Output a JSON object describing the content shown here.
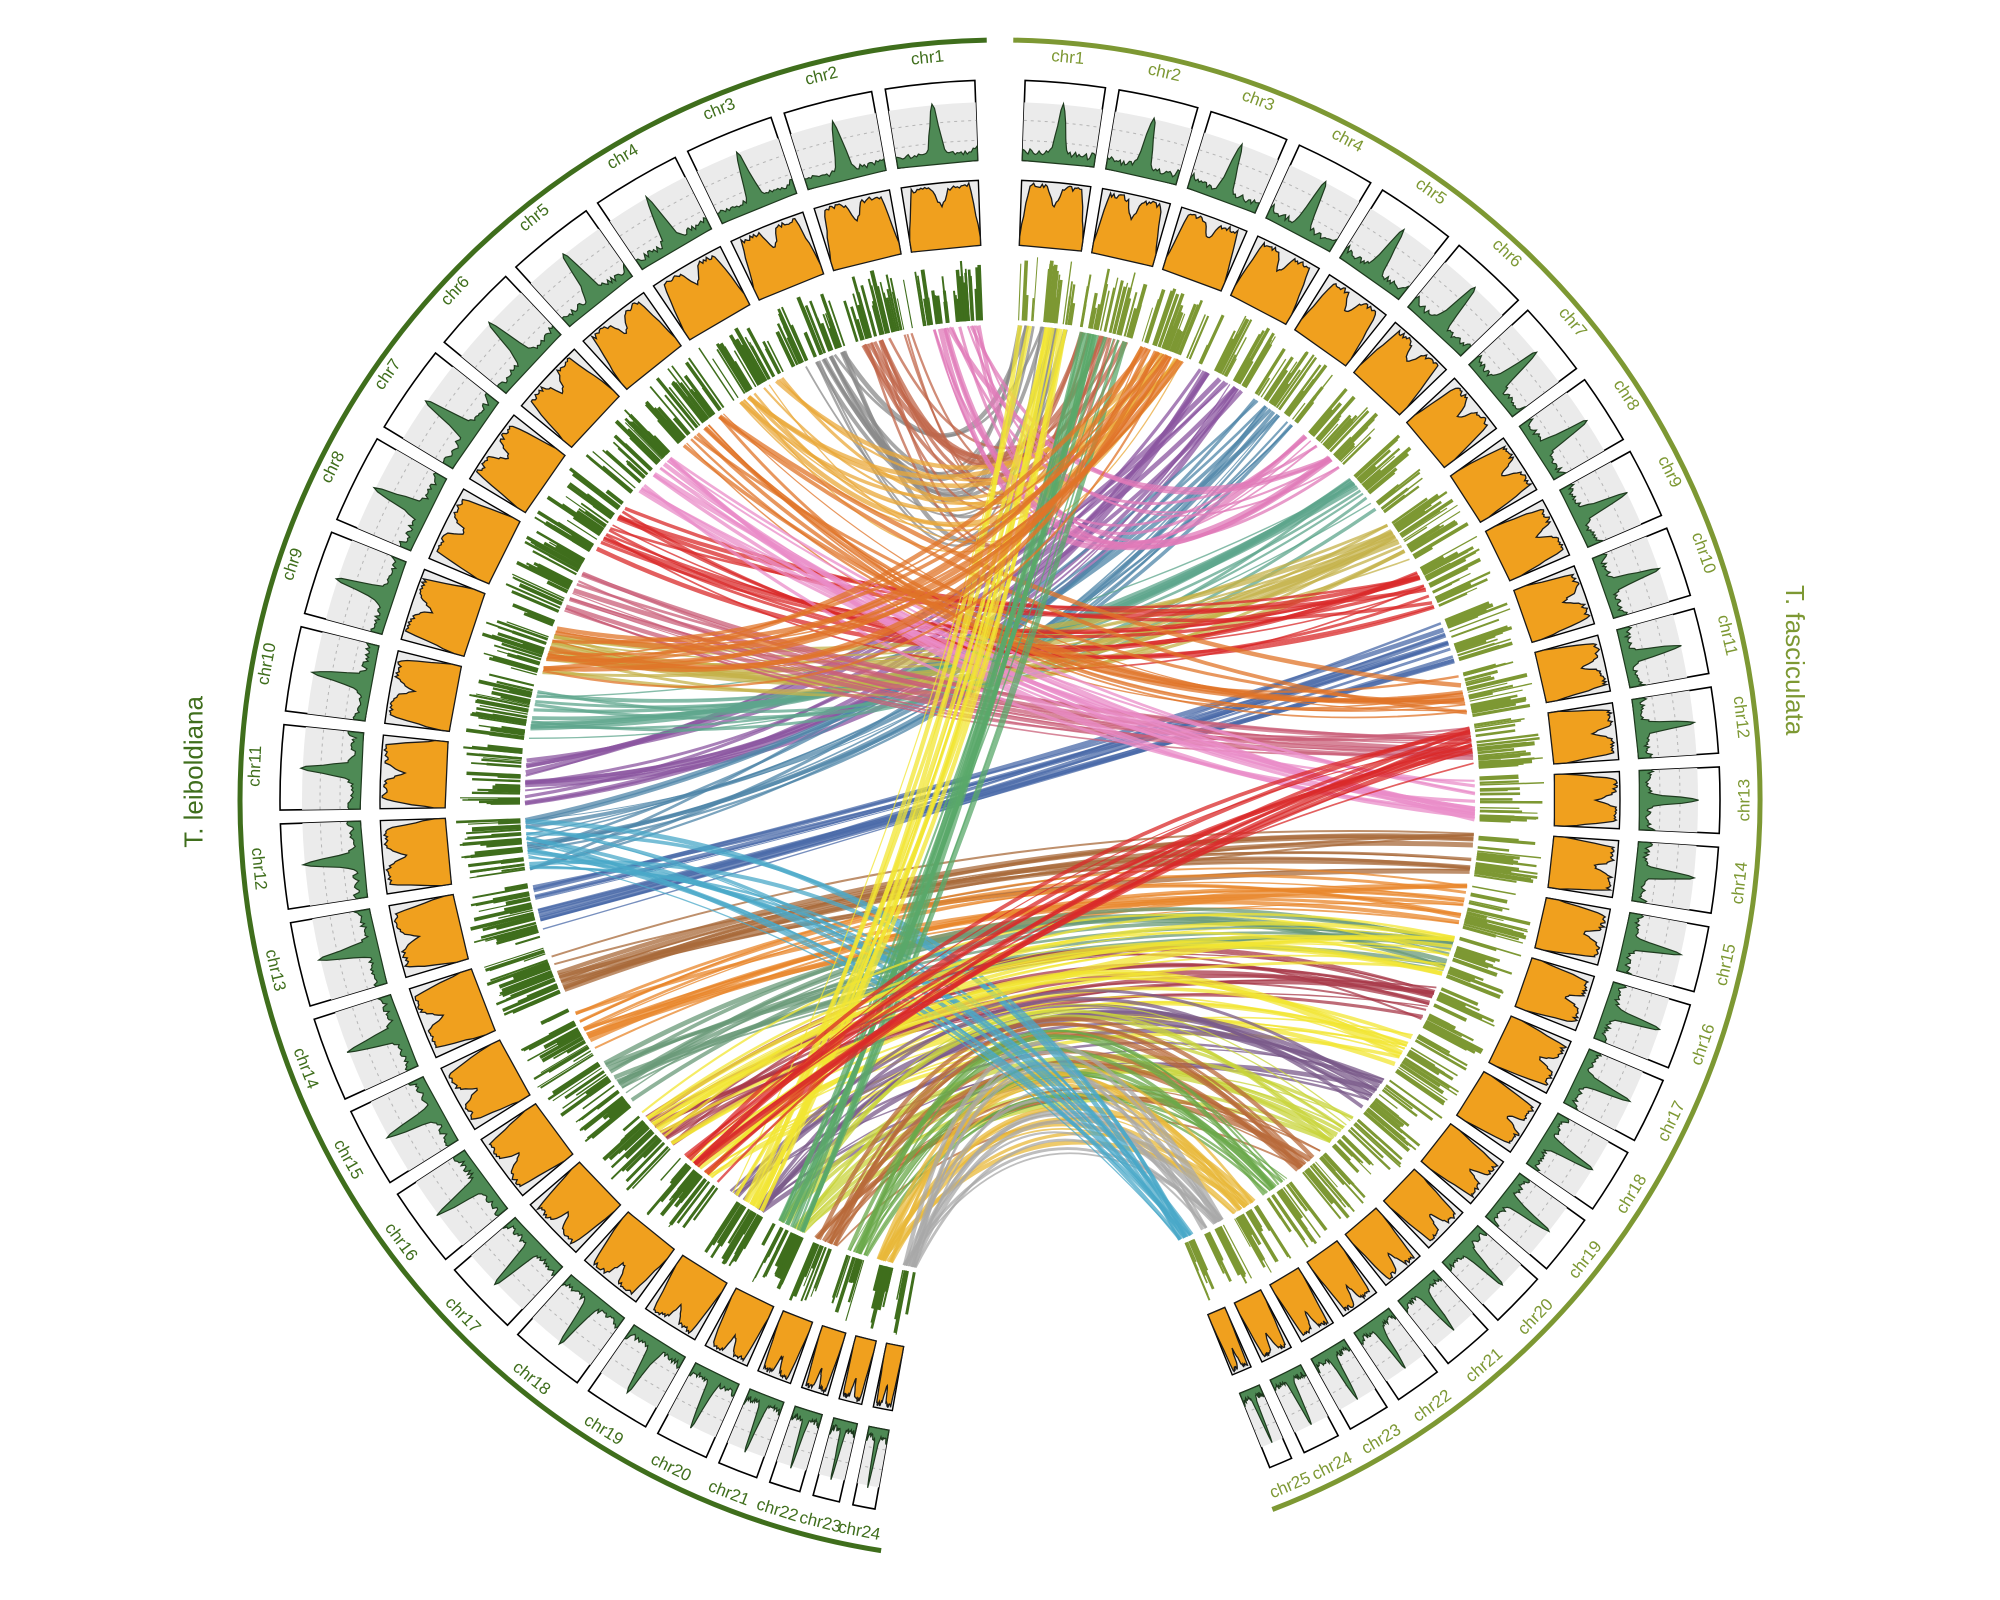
{
  "species": [
    {
      "id": "tlei",
      "name": "T. leiboldiana",
      "color": "#3f6e1c",
      "chromosomes": [
        "chr1",
        "chr2",
        "chr3",
        "chr4",
        "chr5",
        "chr6",
        "chr7",
        "chr8",
        "chr9",
        "chr10",
        "chr11",
        "chr12",
        "chr13",
        "chr14",
        "chr15",
        "chr16",
        "chr17",
        "chr18",
        "chr19",
        "chr20",
        "chr21",
        "chr22",
        "chr23",
        "chr24"
      ],
      "relative_sizes": [
        1.0,
        1.0,
        1.0,
        1.0,
        1.0,
        1.0,
        1.0,
        1.0,
        0.95,
        0.95,
        0.95,
        0.95,
        0.95,
        0.95,
        0.9,
        0.9,
        0.85,
        0.85,
        0.75,
        0.6,
        0.45,
        0.35,
        0.3,
        0.25
      ]
    },
    {
      "id": "tfas",
      "name": "T. fasciculata",
      "color": "#7d9833",
      "chromosomes": [
        "chr1",
        "chr2",
        "chr3",
        "chr4",
        "chr5",
        "chr6",
        "chr7",
        "chr8",
        "chr9",
        "chr10",
        "chr11",
        "chr12",
        "chr13",
        "chr14",
        "chr15",
        "chr16",
        "chr17",
        "chr18",
        "chr19",
        "chr20",
        "chr21",
        "chr22",
        "chr23",
        "chr24",
        "chr25"
      ],
      "relative_sizes": [
        0.85,
        0.85,
        0.85,
        0.85,
        0.85,
        0.85,
        0.8,
        0.75,
        0.75,
        0.75,
        0.7,
        0.7,
        0.7,
        0.7,
        0.7,
        0.7,
        0.7,
        0.7,
        0.65,
        0.6,
        0.55,
        0.5,
        0.45,
        0.4,
        0.25
      ]
    }
  ],
  "tracks": {
    "outer_density_color": "#4e8a55",
    "inner_density_color": "#f0a01e",
    "gene_marks_color_tlei": "#3f6e1c",
    "gene_marks_color_tfas": "#7d9833",
    "panel_background": "#ebebeb"
  },
  "links": [
    {
      "from": "tfas.chr1",
      "to": "tlei.chr3",
      "color": "#8a8a8a"
    },
    {
      "from": "tfas.chr2",
      "to": "tlei.chr2",
      "color": "#c0664a"
    },
    {
      "from": "tfas.chr3",
      "to": "tlei.chr4",
      "color": "#e9a83a"
    },
    {
      "from": "tfas.chr4",
      "to": "tlei.chr11",
      "color": "#8b56a0"
    },
    {
      "from": "tfas.chr5",
      "to": "tlei.chr12",
      "color": "#4f86a8"
    },
    {
      "from": "tfas.chr6",
      "to": "tlei.chr1",
      "color": "#e07ab8"
    },
    {
      "from": "tfas.chr7",
      "to": "tlei.chr10",
      "color": "#5ea68c"
    },
    {
      "from": "tfas.chr8",
      "to": "tlei.chr9",
      "color": "#c4b14a"
    },
    {
      "from": "tfas.chr9",
      "to": "tlei.chr7",
      "color": "#d92a2a"
    },
    {
      "from": "tfas.chr10",
      "to": "tlei.chr13",
      "color": "#4a6aa8"
    },
    {
      "from": "tfas.chr11",
      "to": "tlei.chr5",
      "color": "#e07428"
    },
    {
      "from": "tfas.chr12",
      "to": "tlei.chr8",
      "color": "#c95f78"
    },
    {
      "from": "tfas.chr13",
      "to": "tlei.chr6",
      "color": "#e98cc8"
    },
    {
      "from": "tfas.chr14",
      "to": "tlei.chr14",
      "color": "#a86a3a"
    },
    {
      "from": "tfas.chr15",
      "to": "tlei.chr15",
      "color": "#e8862a"
    },
    {
      "from": "tfas.chr16",
      "to": "tlei.chr16",
      "color": "#6a9a78"
    },
    {
      "from": "tfas.chr17",
      "to": "tlei.chr17",
      "color": "#a83a4a"
    },
    {
      "from": "tfas.chr18",
      "to": "tlei.chr18",
      "color": "#f2e531"
    },
    {
      "from": "tfas.chr19",
      "to": "tlei.chr19",
      "color": "#7a5a8a"
    },
    {
      "from": "tfas.chr20",
      "to": "tlei.chr20",
      "color": "#c8d43a"
    },
    {
      "from": "tfas.chr21",
      "to": "tlei.chr21",
      "color": "#b86a3a"
    },
    {
      "from": "tfas.chr22",
      "to": "tlei.chr22",
      "color": "#6aa84a"
    },
    {
      "from": "tfas.chr23",
      "to": "tlei.chr23",
      "color": "#e8b83a"
    },
    {
      "from": "tfas.chr24",
      "to": "tlei.chr24",
      "color": "#a8a8a8"
    },
    {
      "from": "tfas.chr25",
      "to": "tlei.chr12",
      "color": "#4aa8c8"
    },
    {
      "from": "tfas.chr1",
      "to": "tlei.chr19",
      "color": "#f2e531"
    },
    {
      "from": "tfas.chr2",
      "to": "tlei.chr20",
      "color": "#5aa86a"
    },
    {
      "from": "tfas.chr3",
      "to": "tlei.chr9",
      "color": "#e07428"
    },
    {
      "from": "tfas.chr16",
      "to": "tlei.chr17",
      "color": "#f2e531"
    },
    {
      "from": "tfas.chr12",
      "to": "tlei.chr18",
      "color": "#d92a2a"
    }
  ]
}
